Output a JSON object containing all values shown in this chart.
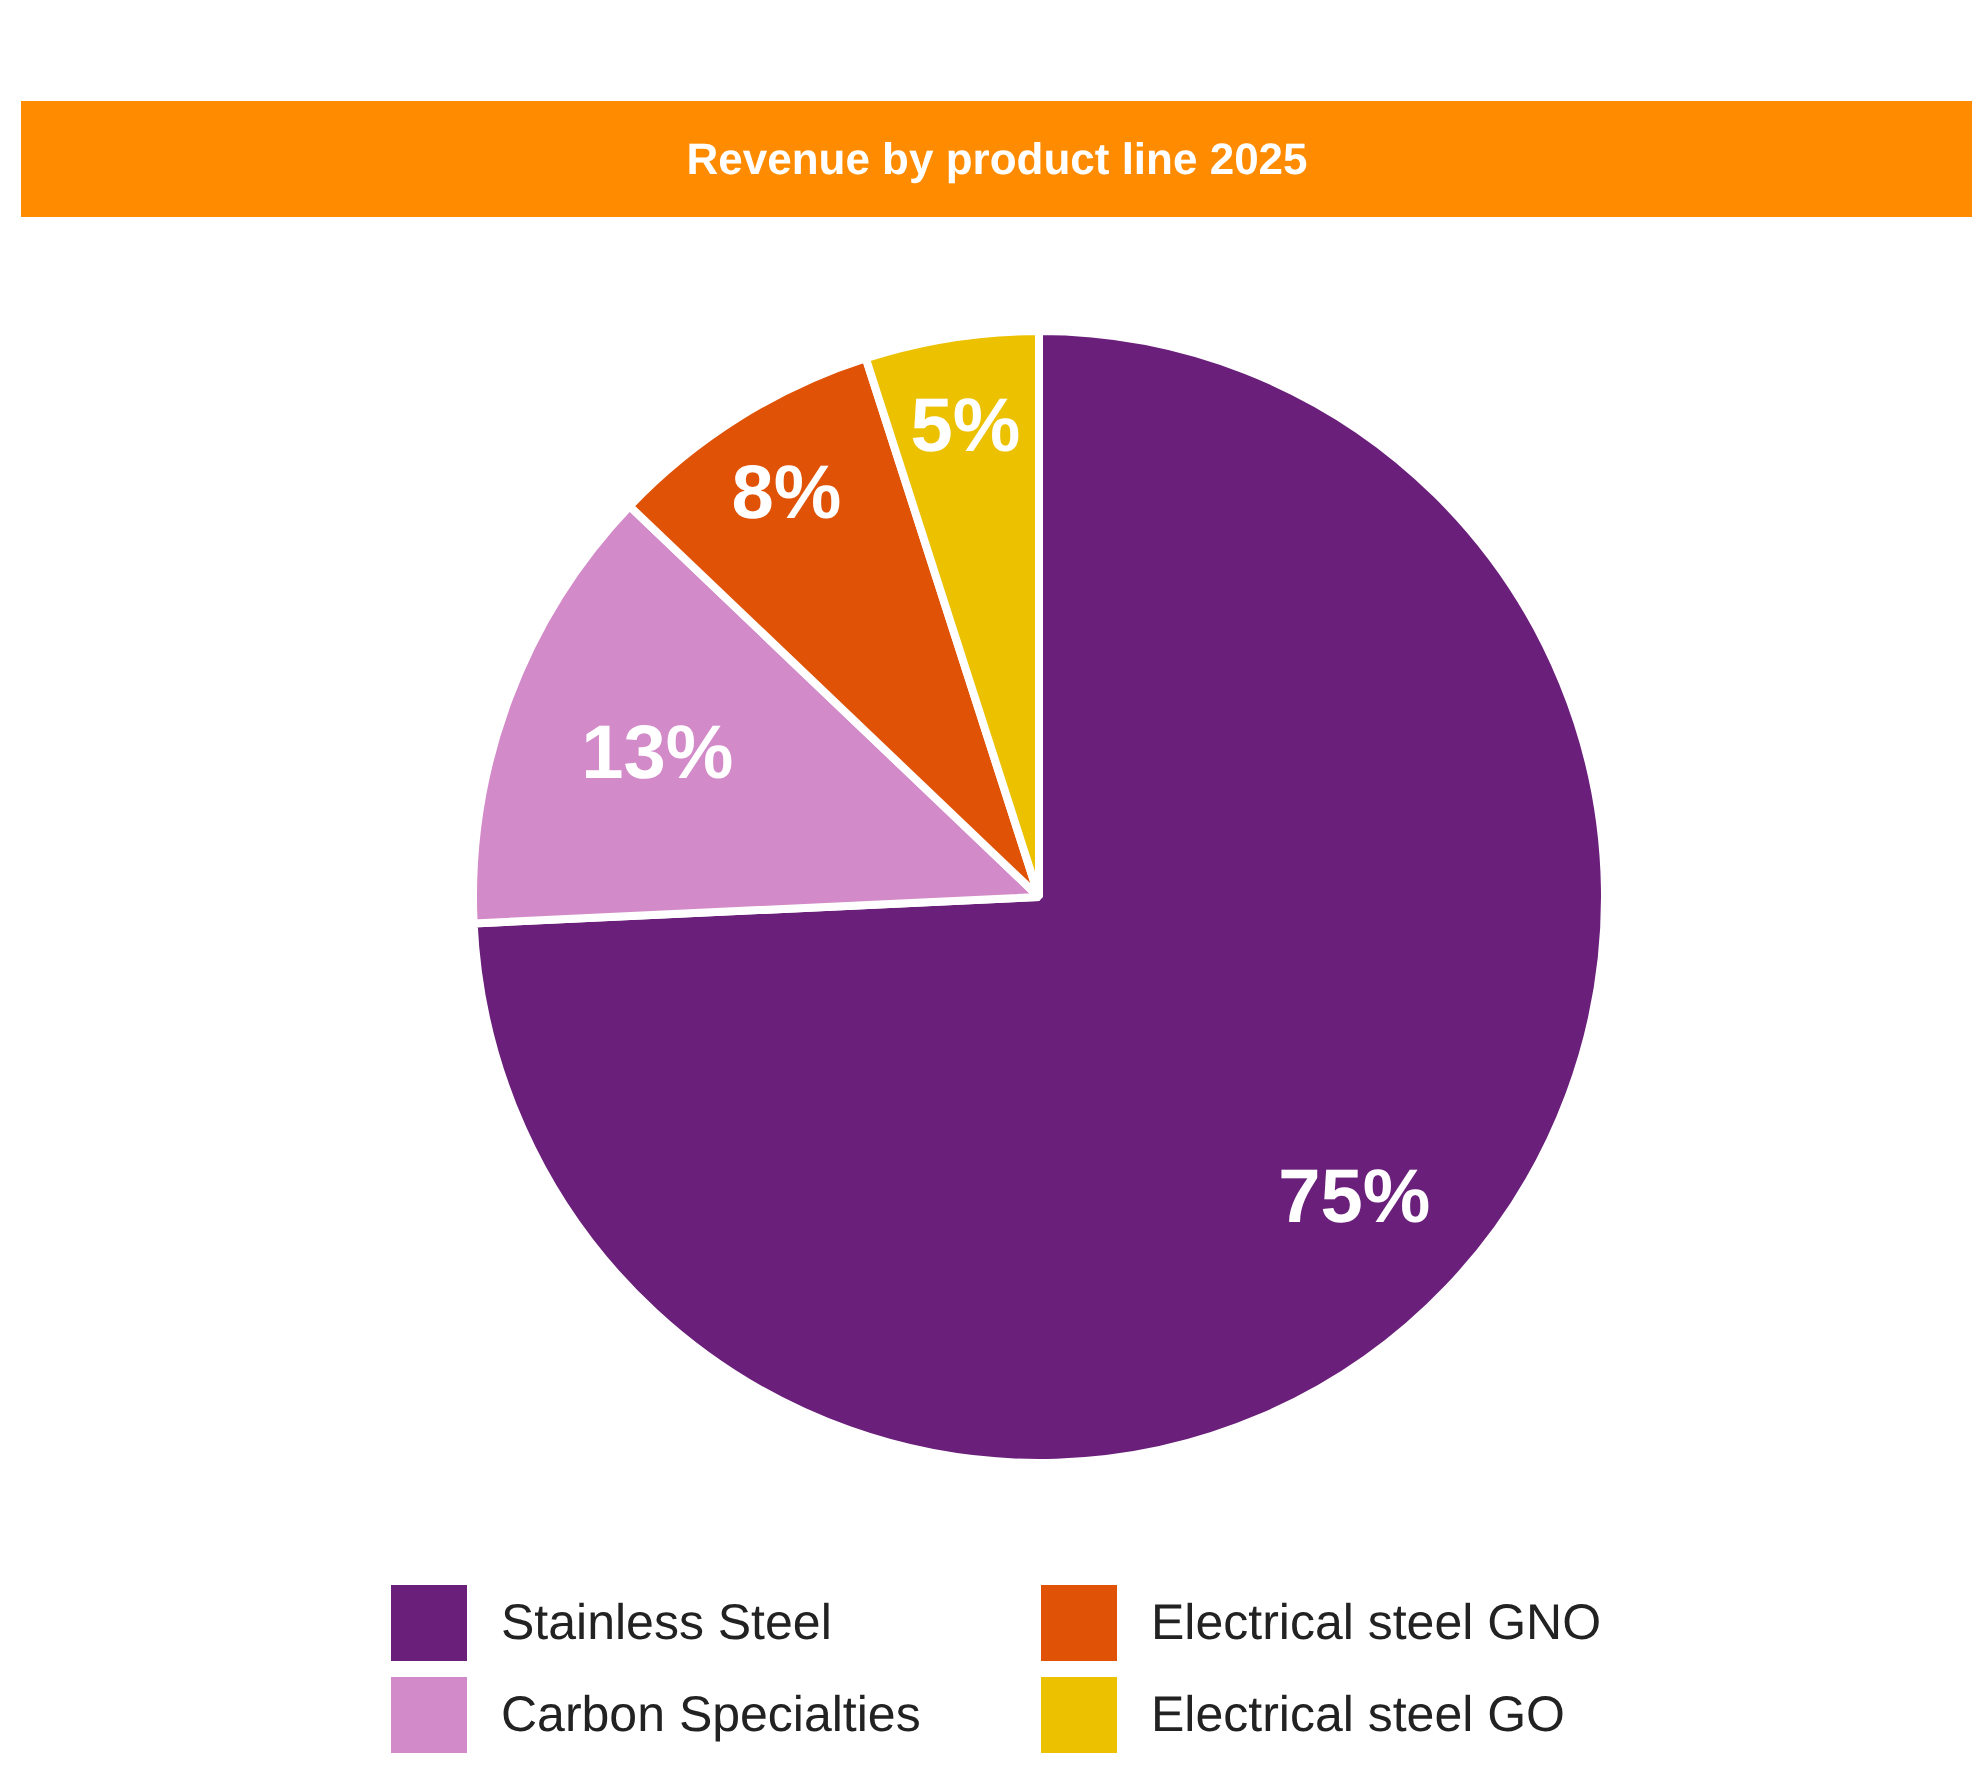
{
  "chart_data": {
    "type": "pie",
    "title": "Revenue by product line 2025",
    "categories": [
      "Stainless Steel",
      "Carbon Specialties",
      "Electrical steel GNO",
      "Electrical steel GO"
    ],
    "values": [
      75,
      13,
      8,
      5
    ],
    "colors": [
      "#6a1f7a",
      "#d38ac8",
      "#e05206",
      "#ecc100"
    ],
    "value_labels": [
      "75%",
      "13%",
      "8%",
      "5%"
    ],
    "legend": "bottom"
  }
}
